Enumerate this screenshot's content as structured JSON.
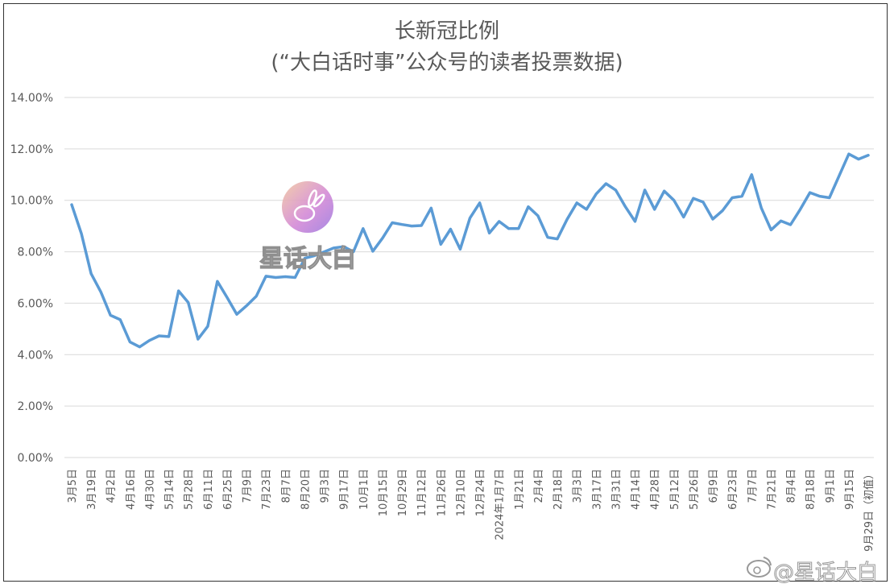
{
  "chart_data": {
    "type": "line",
    "title": "长新冠比例",
    "subtitle": "(“大白话时事”公众号的读者投票数据)",
    "ylim": [
      0,
      0.14
    ],
    "yticks": [
      "0.00%",
      "2.00%",
      "4.00%",
      "6.00%",
      "8.00%",
      "10.00%",
      "12.00%",
      "14.00%"
    ],
    "grid": true,
    "x_tick_labels": [
      "3月5日",
      "3月19日",
      "4月2日",
      "4月16日",
      "4月30日",
      "5月14日",
      "5月28日",
      "6月11日",
      "6月25日",
      "7月9日",
      "7月23日",
      "8月7日",
      "8月20日",
      "9月3日",
      "9月17日",
      "10月1日",
      "10月15日",
      "10月29日",
      "11月12日",
      "11月26日",
      "12月10日",
      "12月24日",
      "2024年1月7日",
      "1月21日",
      "2月4日",
      "2月18日",
      "3月3日",
      "3月17日",
      "3月31日",
      "4月14日",
      "4月28日",
      "5月12日",
      "5月26日",
      "6月9日",
      "6月23日",
      "7月7日",
      "7月21日",
      "8月4日",
      "8月18日",
      "9月1日",
      "9月15日",
      "9月29日（初值）"
    ],
    "series": [
      {
        "color": "#5B9BD5",
        "values": [
          0.0983,
          0.087,
          0.0715,
          0.0644,
          0.0553,
          0.0536,
          0.0449,
          0.043,
          0.0455,
          0.0473,
          0.047,
          0.0648,
          0.0603,
          0.046,
          0.051,
          0.0685,
          0.0622,
          0.0557,
          0.059,
          0.0627,
          0.0705,
          0.07,
          0.0703,
          0.07,
          0.0775,
          0.0785,
          0.08,
          0.0815,
          0.082,
          0.08,
          0.089,
          0.0802,
          0.0853,
          0.0913,
          0.0906,
          0.09,
          0.0902,
          0.097,
          0.0829,
          0.0888,
          0.081,
          0.0931,
          0.099,
          0.0873,
          0.0918,
          0.089,
          0.089,
          0.0975,
          0.094,
          0.0856,
          0.085,
          0.0926,
          0.099,
          0.0965,
          0.1025,
          0.1065,
          0.104,
          0.0975,
          0.0918,
          0.104,
          0.0965,
          0.1036,
          0.1,
          0.0935,
          0.1008,
          0.0993,
          0.0927,
          0.096,
          0.101,
          0.1016,
          0.11,
          0.097,
          0.0885,
          0.092,
          0.0905,
          0.0965,
          0.103,
          0.1016,
          0.101,
          0.1095,
          0.118,
          0.116,
          0.1175
        ]
      }
    ]
  },
  "watermark": {
    "center_text": "星话大白",
    "center_icon": "rabbit-logo-icon",
    "corner_text": "@星话大白",
    "corner_icon": "weibo-logo-icon"
  }
}
